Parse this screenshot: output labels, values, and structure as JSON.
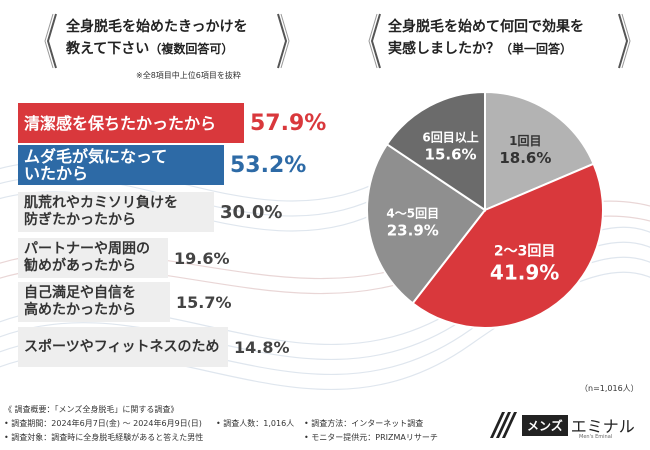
{
  "left_panel": {
    "title_line1": "全身脱毛を始めたきっかけを",
    "title_line2_main": "教えて下さい",
    "title_line2_sub": "（複数回答可）",
    "note": "※全8項目中上位6項目を抜粋"
  },
  "right_panel": {
    "title_line1": "全身脱毛を始めて何回で効果を",
    "title_line2_main": "実感しましたか？",
    "title_line2_sub": "（単一回答）",
    "sample_size": "（n=1,016人）"
  },
  "chart_data": [
    {
      "type": "bar",
      "categories": [
        "清潔感を保ちたかったから",
        "ムダ毛が気になって\nいたから",
        "肌荒れやカミソリ負けを\n防ぎたかったから",
        "パートナーや周囲の\n勧めがあったから",
        "自己満足や自信を\n高めたかったから",
        "スポーツやフィットネスのため"
      ],
      "values": [
        57.9,
        53.2,
        30.0,
        19.6,
        15.7,
        14.8
      ],
      "value_labels": [
        "57.9%",
        "53.2%",
        "30.0%",
        "19.6%",
        "15.7%",
        "14.8%"
      ],
      "colors": [
        "#d9383c",
        "#2d6aa6",
        "#eeeeee",
        "#eeeeee",
        "#eeeeee",
        "#eeeeee"
      ]
    },
    {
      "type": "pie",
      "labels": [
        "1回目",
        "2〜3回目",
        "4〜5回目",
        "6回目以上"
      ],
      "values": [
        18.6,
        41.9,
        23.9,
        15.6
      ],
      "value_labels": [
        "18.6%",
        "41.9%",
        "23.9%",
        "15.6%"
      ],
      "colors": [
        "#b3b3b3",
        "#d9383c",
        "#8f8f8f",
        "#6b6b6b"
      ]
    }
  ],
  "footer": {
    "line1": "《 調査概要：「メンズ全身脱毛」に関する調査》",
    "period": "• 調査期間：2024年6月7日(金) 〜 2024年6月9日(日)",
    "count": "• 調査人数：1,016人",
    "method": "• 調査方法：インターネット調査",
    "target": "• 調査対象：調査時に全身脱毛経験があると答えた男性",
    "provider": "• モニター提供元：PRIZMAリサーチ"
  },
  "logo": {
    "boxed": "メンズ",
    "word": "エミナル",
    "sub": "Men's Eminal"
  }
}
